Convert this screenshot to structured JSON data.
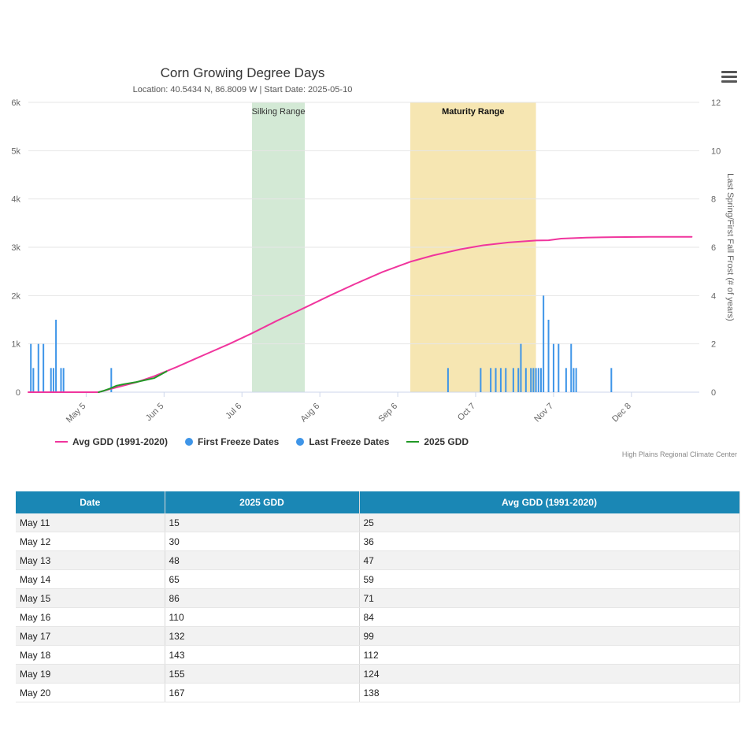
{
  "menu": {
    "icon": "hamburger-menu-icon"
  },
  "credits": "High Plains Regional Climate Center",
  "colors": {
    "avg": "#f0359d",
    "gdd2025": "#219926",
    "freeze": "#3e95e8",
    "silking": "#d3e9d5",
    "maturity": "#f6e6b2",
    "header": "#1a87b5"
  },
  "chart_data": {
    "type": "line",
    "title": "Corn Growing Degree Days",
    "subtitle": "Location: 40.5434 N, 86.8009 W | Start Date: 2025-05-10",
    "x_range": [
      "2025-04-12",
      "2026-01-04"
    ],
    "x_ticks": [
      {
        "date": "2025-05-05",
        "label": "May 5"
      },
      {
        "date": "2025-06-05",
        "label": "Jun 5"
      },
      {
        "date": "2025-07-06",
        "label": "Jul 6"
      },
      {
        "date": "2025-08-06",
        "label": "Aug 6"
      },
      {
        "date": "2025-09-06",
        "label": "Sep 6"
      },
      {
        "date": "2025-10-07",
        "label": "Oct 7"
      },
      {
        "date": "2025-11-07",
        "label": "Nov 7"
      },
      {
        "date": "2025-12-08",
        "label": "Dec 8"
      }
    ],
    "y_left": {
      "min": 0,
      "max": 6000,
      "ticks": [
        0,
        1000,
        2000,
        3000,
        4000,
        5000,
        6000
      ],
      "tick_labels": [
        "0",
        "1k",
        "2k",
        "3k",
        "4k",
        "5k",
        "6k"
      ]
    },
    "y_right": {
      "label": "Last Spring/First Fall Frost (# of years)",
      "min": 0,
      "max": 12,
      "ticks": [
        0,
        2,
        4,
        6,
        8,
        10,
        12
      ]
    },
    "bands": [
      {
        "name": "Silking Range",
        "start": "2025-07-10",
        "end": "2025-07-31",
        "bold": false
      },
      {
        "name": "Maturity Range",
        "start": "2025-09-11",
        "end": "2025-10-31",
        "bold": true
      }
    ],
    "series": [
      {
        "name": "Avg GDD (1991-2020)",
        "axis": "left",
        "kind": "line",
        "points": [
          [
            "2025-04-12",
            0
          ],
          [
            "2025-05-10",
            0
          ],
          [
            "2025-05-15",
            71
          ],
          [
            "2025-05-20",
            138
          ],
          [
            "2025-05-25",
            205
          ],
          [
            "2025-06-01",
            330
          ],
          [
            "2025-06-10",
            520
          ],
          [
            "2025-06-20",
            750
          ],
          [
            "2025-07-01",
            1000
          ],
          [
            "2025-07-10",
            1220
          ],
          [
            "2025-07-20",
            1480
          ],
          [
            "2025-07-31",
            1750
          ],
          [
            "2025-08-10",
            2000
          ],
          [
            "2025-08-20",
            2240
          ],
          [
            "2025-08-31",
            2490
          ],
          [
            "2025-09-11",
            2700
          ],
          [
            "2025-09-20",
            2830
          ],
          [
            "2025-10-01",
            2960
          ],
          [
            "2025-10-10",
            3040
          ],
          [
            "2025-10-20",
            3100
          ],
          [
            "2025-10-31",
            3140
          ],
          [
            "2025-11-05",
            3145
          ],
          [
            "2025-11-10",
            3180
          ],
          [
            "2025-11-20",
            3200
          ],
          [
            "2025-12-01",
            3210
          ],
          [
            "2025-12-15",
            3215
          ],
          [
            "2026-01-01",
            3215
          ]
        ]
      },
      {
        "name": "2025 GDD",
        "axis": "left",
        "kind": "line",
        "points": [
          [
            "2025-05-10",
            0
          ],
          [
            "2025-05-11",
            15
          ],
          [
            "2025-05-12",
            30
          ],
          [
            "2025-05-13",
            48
          ],
          [
            "2025-05-14",
            65
          ],
          [
            "2025-05-15",
            86
          ],
          [
            "2025-05-16",
            110
          ],
          [
            "2025-05-17",
            132
          ],
          [
            "2025-05-18",
            143
          ],
          [
            "2025-05-19",
            155
          ],
          [
            "2025-05-20",
            167
          ],
          [
            "2025-05-25",
            210
          ],
          [
            "2025-06-01",
            290
          ],
          [
            "2025-06-06",
            430
          ]
        ]
      },
      {
        "name": "First Freeze Dates",
        "axis": "right",
        "kind": "column",
        "points": [
          [
            "2025-09-26",
            1
          ],
          [
            "2025-10-09",
            1
          ],
          [
            "2025-10-13",
            1
          ],
          [
            "2025-10-15",
            1
          ],
          [
            "2025-10-17",
            1
          ],
          [
            "2025-10-19",
            1
          ],
          [
            "2025-10-22",
            1
          ],
          [
            "2025-10-24",
            1
          ],
          [
            "2025-10-25",
            2
          ],
          [
            "2025-10-27",
            1
          ],
          [
            "2025-10-29",
            1
          ],
          [
            "2025-10-30",
            1
          ],
          [
            "2025-10-31",
            1
          ],
          [
            "2025-11-01",
            1
          ],
          [
            "2025-11-02",
            1
          ],
          [
            "2025-11-03",
            4
          ],
          [
            "2025-11-05",
            3
          ],
          [
            "2025-11-07",
            2
          ],
          [
            "2025-11-09",
            2
          ],
          [
            "2025-11-12",
            1
          ],
          [
            "2025-11-14",
            2
          ],
          [
            "2025-11-15",
            1
          ],
          [
            "2025-11-16",
            1
          ],
          [
            "2025-11-30",
            1
          ]
        ]
      },
      {
        "name": "Last Freeze Dates",
        "axis": "right",
        "kind": "column",
        "points": [
          [
            "2025-04-13",
            2
          ],
          [
            "2025-04-14",
            1
          ],
          [
            "2025-04-16",
            2
          ],
          [
            "2025-04-18",
            2
          ],
          [
            "2025-04-21",
            1
          ],
          [
            "2025-04-22",
            1
          ],
          [
            "2025-04-23",
            3
          ],
          [
            "2025-04-25",
            1
          ],
          [
            "2025-04-26",
            1
          ],
          [
            "2025-05-15",
            1
          ]
        ]
      }
    ],
    "legend": [
      {
        "label": "Avg GDD (1991-2020)",
        "shape": "line",
        "color": "#f0359d"
      },
      {
        "label": "First Freeze Dates",
        "shape": "dot",
        "color": "#3e95e8"
      },
      {
        "label": "Last Freeze Dates",
        "shape": "dot",
        "color": "#3e95e8"
      },
      {
        "label": "2025 GDD",
        "shape": "line",
        "color": "#219926"
      }
    ]
  },
  "table": {
    "headers": [
      "Date",
      "2025 GDD",
      "Avg GDD (1991-2020)"
    ],
    "rows": [
      [
        "May 11",
        "15",
        "25"
      ],
      [
        "May 12",
        "30",
        "36"
      ],
      [
        "May 13",
        "48",
        "47"
      ],
      [
        "May 14",
        "65",
        "59"
      ],
      [
        "May 15",
        "86",
        "71"
      ],
      [
        "May 16",
        "110",
        "84"
      ],
      [
        "May 17",
        "132",
        "99"
      ],
      [
        "May 18",
        "143",
        "112"
      ],
      [
        "May 19",
        "155",
        "124"
      ],
      [
        "May 20",
        "167",
        "138"
      ]
    ]
  }
}
